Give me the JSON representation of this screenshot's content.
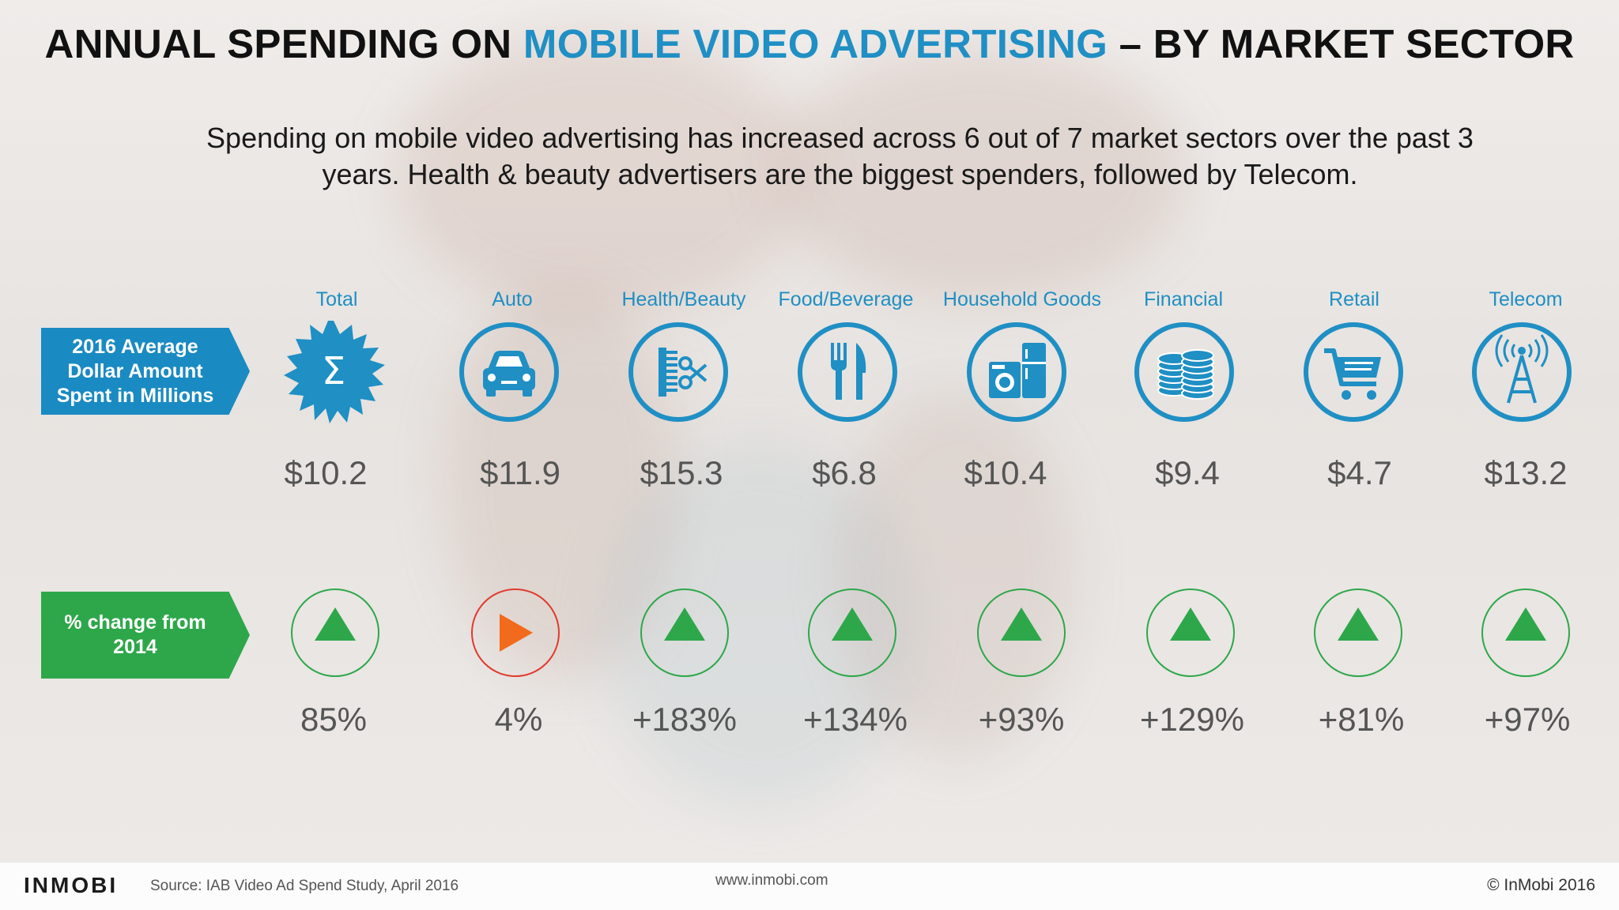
{
  "title": {
    "prefix": "ANNUAL SPENDING ON ",
    "accent": "MOBILE VIDEO ADVERTISING",
    "suffix": " – BY MARKET SECTOR"
  },
  "subtitle_lines": [
    "Spending on mobile video advertising has increased across 6 out of 7 market sectors over the past 3",
    "years. Health & beauty advertisers are the biggest spenders, followed by Telecom."
  ],
  "row_labels": {
    "amount": [
      "2016 Average",
      "Dollar Amount",
      "Spent in Millions"
    ],
    "change": [
      "% change from",
      "2014"
    ]
  },
  "colors": {
    "blue": "#1f8fc4",
    "green": "#2ea74a",
    "orange": "#f26a1b",
    "red": "#e03a2f"
  },
  "sectors": [
    {
      "label": "Total",
      "icon": "sigma-icon",
      "amount": "$10.2",
      "change": "85%",
      "trend": "up"
    },
    {
      "label": "Auto",
      "icon": "car-icon",
      "amount": "$11.9",
      "change": "4%",
      "trend": "flat"
    },
    {
      "label": "Health/Beauty",
      "icon": "comb-scissors-icon",
      "amount": "$15.3",
      "change": "+183%",
      "trend": "up"
    },
    {
      "label": "Food/Beverage",
      "icon": "fork-knife-icon",
      "amount": "$6.8",
      "change": "+134%",
      "trend": "up"
    },
    {
      "label": "Household Goods",
      "icon": "appliances-icon",
      "amount": "$10.4",
      "change": "+93%",
      "trend": "up"
    },
    {
      "label": "Financial",
      "icon": "coins-icon",
      "amount": "$9.4",
      "change": "+129%",
      "trend": "up"
    },
    {
      "label": "Retail",
      "icon": "shopping-cart-icon",
      "amount": "$4.7",
      "change": "+81%",
      "trend": "up"
    },
    {
      "label": "Telecom",
      "icon": "tower-icon",
      "amount": "$13.2",
      "change": "+97%",
      "trend": "up"
    }
  ],
  "footer": {
    "logo": "INMOBI",
    "source": "Source: IAB Video Ad Spend Study, April 2016",
    "url": "www.inmobi.com",
    "copyright": "© InMobi 2016"
  }
}
